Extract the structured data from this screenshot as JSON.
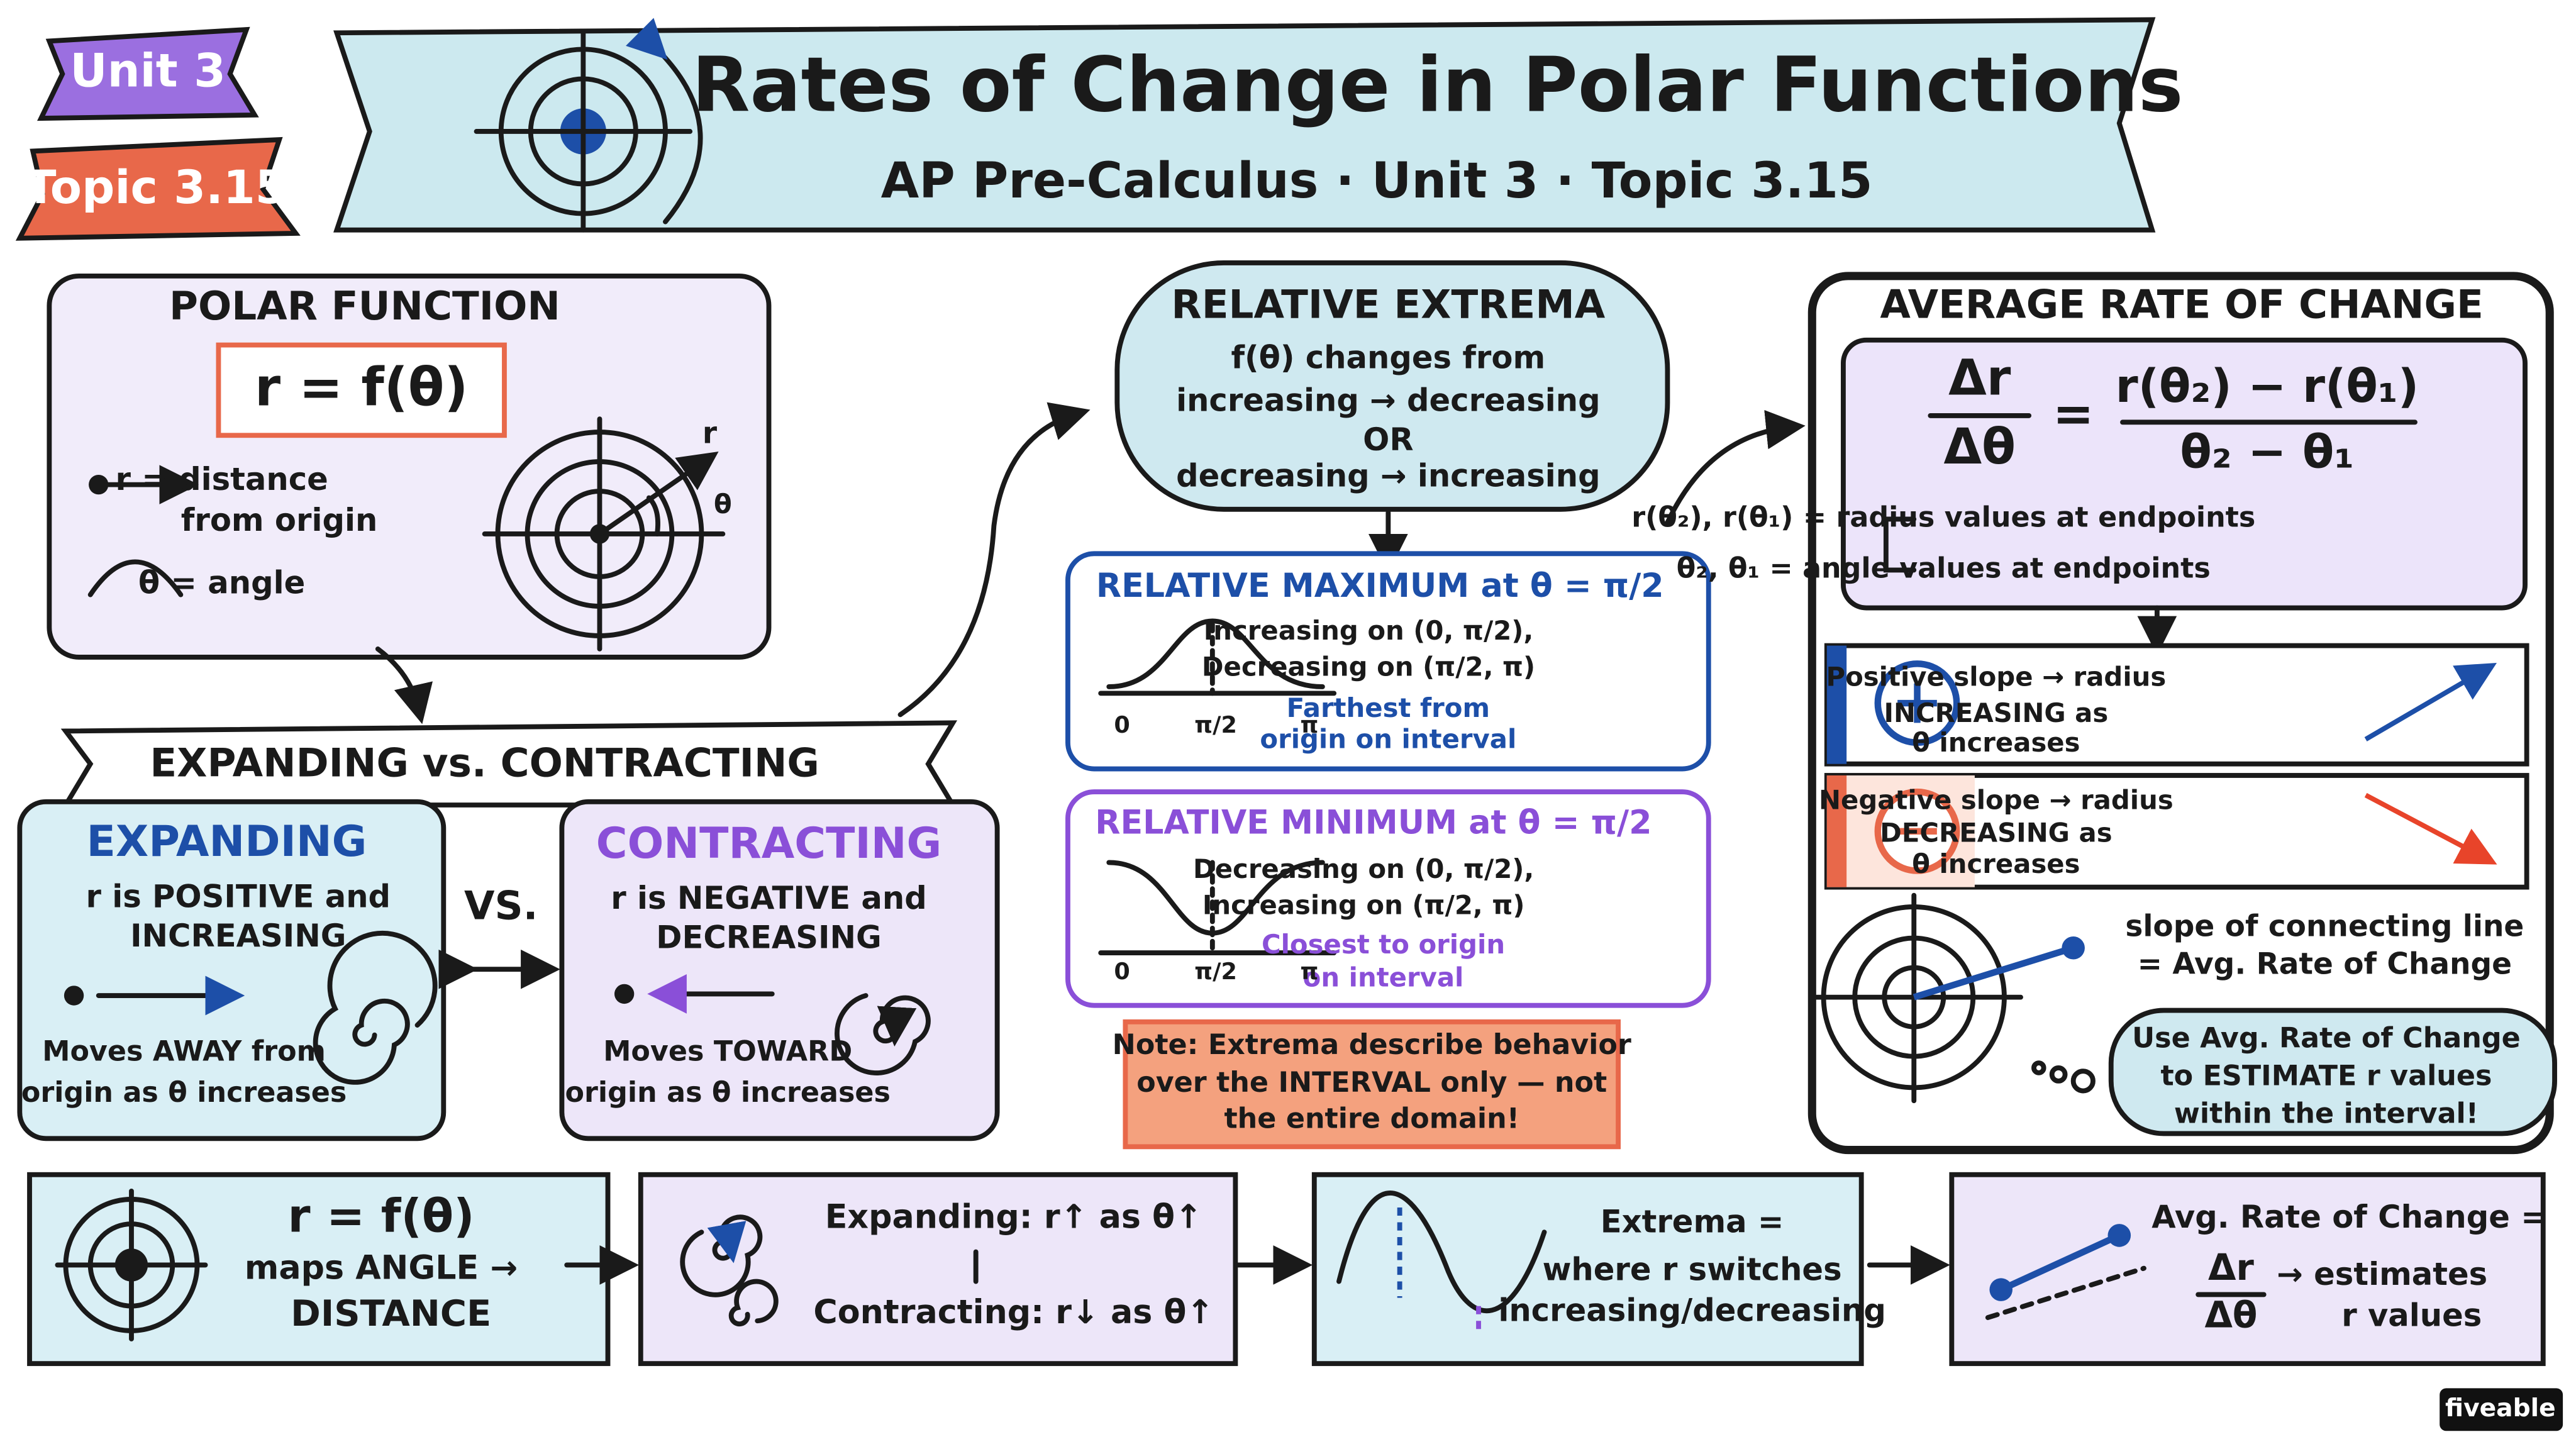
{
  "badges": {
    "unit": "Unit 3",
    "topic": "Topic 3.15"
  },
  "header": {
    "title": "Rates of Change in Polar Functions",
    "subtitle": "AP Pre-Calculus · Unit 3 · Topic 3.15"
  },
  "polar_function": {
    "title": "POLAR FUNCTION",
    "formula": "r = f(θ)",
    "r_definition": [
      "r = distance",
      "from origin"
    ],
    "theta_definition": "θ = angle",
    "diagram_labels": [
      "r",
      "θ"
    ]
  },
  "expanding_vs_contracting": {
    "banner": "EXPANDING vs. CONTRACTING",
    "vs": "VS.",
    "expanding": {
      "title": "EXPANDING",
      "description": [
        "r is POSITIVE and",
        "INCREASING"
      ],
      "note": [
        "Moves AWAY from",
        "origin as θ increases"
      ]
    },
    "contracting": {
      "title": "CONTRACTING",
      "description": [
        "r is NEGATIVE and",
        "DECREASING"
      ],
      "note": [
        "Moves TOWARD",
        "origin as θ increases"
      ]
    }
  },
  "relative_extrema": {
    "title": "RELATIVE EXTREMA",
    "lines": [
      "f(θ) changes from",
      "increasing → decreasing",
      "OR",
      "decreasing → increasing"
    ],
    "maximum": {
      "title": "RELATIVE MAXIMUM at θ = π/2",
      "lines": [
        "Increasing on (0, π/2),",
        "Decreasing on (π/2, π)"
      ],
      "highlight": [
        "Farthest from",
        "origin on interval"
      ],
      "axis_labels": [
        "0",
        "π/2",
        "π"
      ]
    },
    "minimum": {
      "title": "RELATIVE MINIMUM at θ = π/2",
      "lines": [
        "Decreasing on (0, π/2),",
        "Increasing on (π/2, π)"
      ],
      "highlight": [
        "Closest to origin",
        "on interval"
      ],
      "axis_labels": [
        "0",
        "π/2",
        "π"
      ]
    },
    "note": [
      "Note: Extrema describe behavior",
      "over the INTERVAL only — not",
      "the entire domain!"
    ]
  },
  "average_rate_of_change": {
    "title": "AVERAGE RATE OF CHANGE",
    "formula": {
      "lhs_numerator": "Δr",
      "lhs_denominator": "Δθ",
      "equals": "=",
      "rhs_numerator": "r(θ₂) − r(θ₁)",
      "rhs_denominator": "θ₂ − θ₁"
    },
    "definitions": [
      "r(θ₂), r(θ₁) = radius values at endpoints",
      "θ₂, θ₁ = angle values at endpoints"
    ],
    "positive": [
      "Positive slope → radius",
      "INCREASING as",
      "θ increases"
    ],
    "negative": [
      "Negative slope → radius",
      "DECREASING as",
      "θ increases"
    ],
    "slope": [
      "slope of connecting line",
      "= Avg. Rate of Change"
    ],
    "tip": [
      "Use Avg. Rate of Change",
      "to ESTIMATE r values",
      "within the interval!"
    ]
  },
  "summary": [
    {
      "lines": [
        "r = f(θ)",
        "maps ANGLE →",
        "DISTANCE"
      ]
    },
    {
      "lines": [
        "Expanding: r↑ as θ↑",
        "Contracting: r↓ as θ↑"
      ]
    },
    {
      "lines": [
        "Extrema =",
        "where r switches",
        "increasing/decreasing"
      ]
    },
    {
      "lines": [
        "Avg. Rate of Change ="
      ],
      "fraction": [
        "Δr",
        "Δθ"
      ],
      "result": [
        "→ estimates",
        "r values"
      ]
    }
  ],
  "brand": "fiveable"
}
